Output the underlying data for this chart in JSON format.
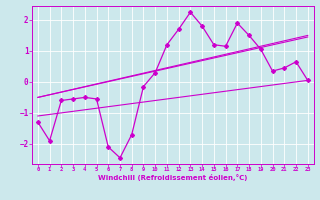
{
  "xlabel": "Windchill (Refroidissement éolien,°C)",
  "xlim": [
    -0.5,
    23.5
  ],
  "ylim": [
    -2.65,
    2.45
  ],
  "xticks": [
    0,
    1,
    2,
    3,
    4,
    5,
    6,
    7,
    8,
    9,
    10,
    11,
    12,
    13,
    14,
    15,
    16,
    17,
    18,
    19,
    20,
    21,
    22,
    23
  ],
  "yticks": [
    -2,
    -1,
    0,
    1,
    2
  ],
  "bg_color": "#cce8ec",
  "line_color": "#cc00cc",
  "data_x": [
    0,
    1,
    2,
    3,
    4,
    5,
    6,
    7,
    8,
    9,
    10,
    11,
    12,
    13,
    14,
    15,
    16,
    17,
    18,
    19,
    20,
    21,
    22,
    23
  ],
  "data_y": [
    -1.3,
    -1.9,
    -0.6,
    -0.55,
    -0.5,
    -0.55,
    -2.1,
    -2.45,
    -1.7,
    -0.15,
    0.3,
    1.2,
    1.7,
    2.25,
    1.8,
    1.2,
    1.15,
    1.9,
    1.5,
    1.05,
    0.35,
    0.45,
    0.65,
    0.05
  ],
  "trend1_x": [
    0,
    23
  ],
  "trend1_y": [
    -0.5,
    1.5
  ],
  "trend2_x": [
    0,
    23
  ],
  "trend2_y": [
    -1.1,
    0.05
  ],
  "trend3_x": [
    0,
    23
  ],
  "trend3_y": [
    -0.5,
    1.45
  ]
}
